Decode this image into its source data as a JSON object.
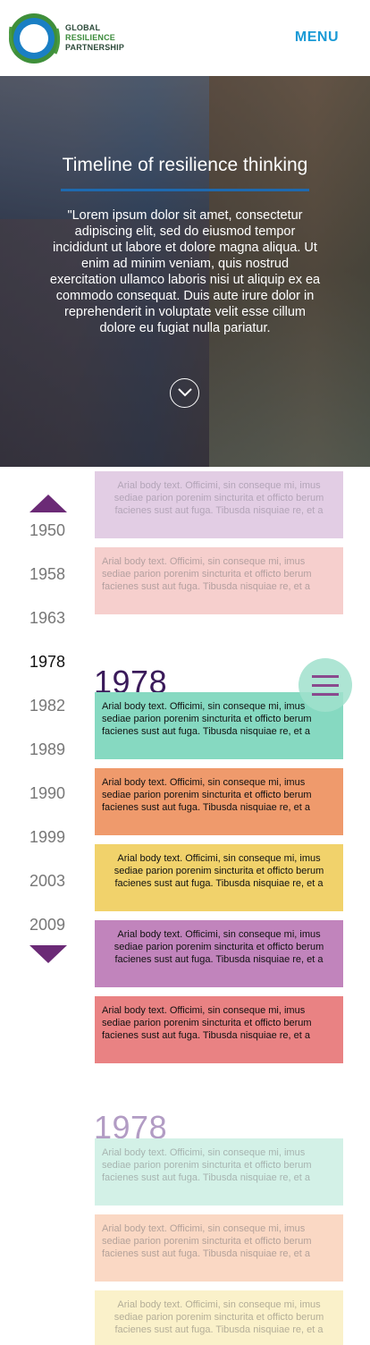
{
  "header": {
    "logo_line1": "GLOBAL",
    "logo_line2": "RESILIENCE",
    "logo_line3": "PARTNERSHIP",
    "menu_label": "MENU"
  },
  "hero": {
    "title": "Timeline of resilience thinking",
    "text": "\"Lorem ipsum dolor sit amet, consectetur adipiscing elit, sed do eiusmod tempor incididunt ut labore et dolore magna aliqua. Ut enim ad minim veniam, quis nostrud exercitation ullamco laboris nisi ut aliquip ex ea commodo consequat. Duis aute irure dolor in reprehenderit in voluptate velit esse cillum dolore eu fugiat nulla pariatur.",
    "icon": "chevron-down-circle-icon"
  },
  "timeline": {
    "years": [
      "1950",
      "1958",
      "1963",
      "1978",
      "1982",
      "1989",
      "1990",
      "1999",
      "2003",
      "2009"
    ],
    "active_year": "1978",
    "section_heading_1": "1978",
    "section_heading_2": "1978",
    "card_text": "Arial body text. Officimi, sin conseque mi, imus sediae parion porenim sincturita et officto berum facienes sust aut fuga. Tibusda nisquiae re, et a",
    "cards": [
      {
        "text": "Arial body text. Officimi, sin conseque mi, imus sediae parion porenim sincturita et officto berum facienes sust aut fuga. Tibusda nisquiae re, et a",
        "bg": "#e2cde4",
        "fg": "#b3a5b8"
      },
      {
        "text": "Arial body text. Officimi, sin conseque mi, imus sediae parion porenim sincturita et officto berum facienes sust aut fuga. Tibusda nisquiae re, et a",
        "bg": "#f6cfcd",
        "fg": "#b4a0a0"
      },
      {
        "text": "Arial body text. Officimi, sin conseque mi, imus sediae parion porenim sincturita et officto berum facienes sust aut fuga. Tibusda nisquiae re, et a",
        "bg": "#86d9c1",
        "fg": "#111111"
      },
      {
        "text": "Arial body text. Officimi, sin conseque mi, imus sediae parion porenim sincturita et officto berum facienes sust aut fuga. Tibusda nisquiae re, et a",
        "bg": "#ef9a6c",
        "fg": "#111111"
      },
      {
        "text": "Arial body text. Officimi, sin conseque mi, imus sediae parion porenim sincturita et officto berum facienes sust aut fuga. Tibusda nisquiae re, et a",
        "bg": "#f1d26b",
        "fg": "#111111"
      },
      {
        "text": "Arial body text. Officimi, sin conseque mi, imus sediae parion porenim sincturita et officto berum facienes sust aut fuga. Tibusda nisquiae re, et a",
        "bg": "#c184bc",
        "fg": "#111111"
      },
      {
        "text": "Arial body text. Officimi, sin conseque mi, imus sediae parion porenim sincturita et officto berum facienes sust aut fuga. Tibusda nisquiae re, et a",
        "bg": "#e98283",
        "fg": "#111111"
      },
      {
        "text": "Arial body text. Officimi, sin conseque mi, imus sediae parion porenim sincturita et officto berum facienes sust aut fuga. Tibusda nisquiae re, et a",
        "bg": "#d3f1e7",
        "fg": "#a7b4b0"
      },
      {
        "text": "Arial body text. Officimi, sin conseque mi, imus sediae parion porenim sincturita et officto berum facienes sust aut fuga. Tibusda nisquiae re, et a",
        "bg": "#fad8c4",
        "fg": "#b4a29a"
      },
      {
        "text": "Arial body text. Officimi, sin conseque mi, imus sediae parion porenim sincturita et officto berum facienes sust aut fuga. Tibusda nisquiae re, et a",
        "bg": "#faf1ca",
        "fg": "#b4ae98"
      }
    ],
    "accent_color": "#6b2a76",
    "icons": [
      "arrow-up-icon",
      "arrow-down-icon",
      "hamburger-icon"
    ]
  }
}
